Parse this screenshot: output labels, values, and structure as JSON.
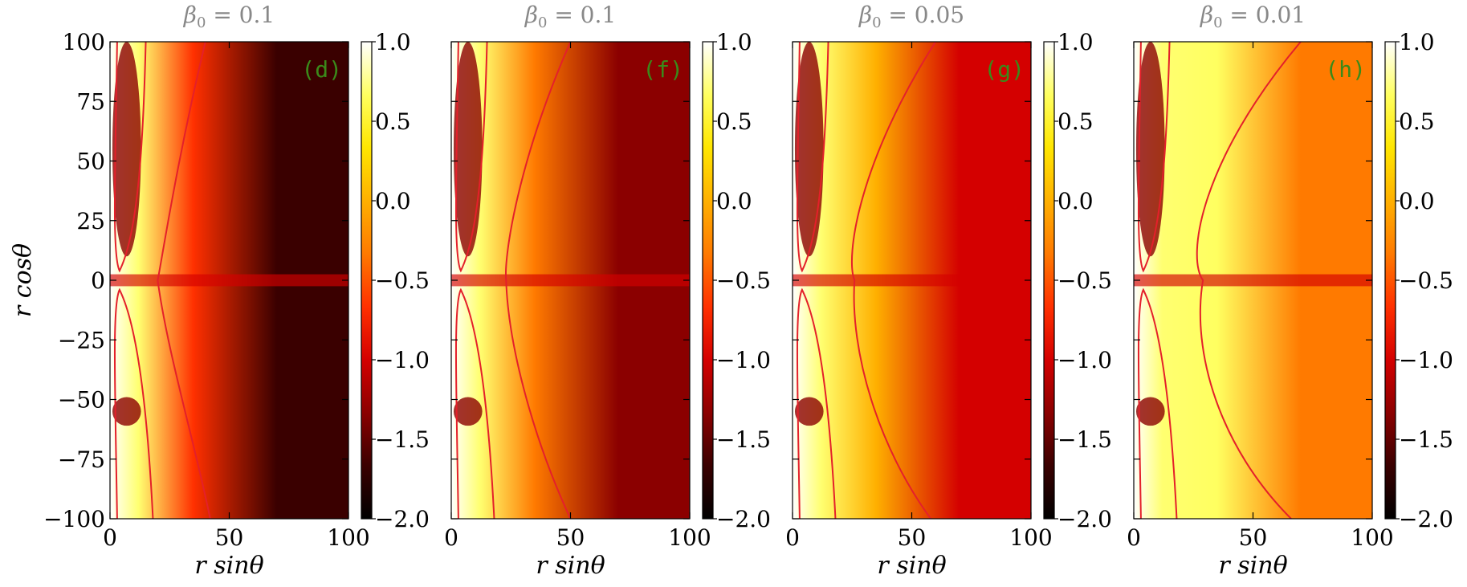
{
  "chart_data": {
    "type": "heatmap",
    "shared": {
      "xlabel": "r sinθ",
      "ylabel": "r cosθ",
      "xlim": [
        0,
        100
      ],
      "ylim": [
        -100,
        100
      ],
      "xticks": [
        0,
        50,
        100
      ],
      "yticks": [
        100,
        75,
        50,
        25,
        0,
        -25,
        -50,
        -75,
        -100
      ],
      "xtick_labels": [
        "0",
        "50",
        "100"
      ],
      "ytick_labels": [
        "100",
        "75",
        "50",
        "25",
        "0",
        "−25",
        "−50",
        "−75",
        "−100"
      ],
      "colorbar": {
        "range": [
          -2.0,
          1.0
        ],
        "ticks": [
          1.0,
          0.5,
          0.0,
          -0.5,
          -1.0,
          -1.5,
          -2.0
        ],
        "tick_labels": [
          "1.0",
          "0.5",
          "0.0",
          "−0.5",
          "−1.0",
          "−1.5",
          "−2.0"
        ],
        "colormap": [
          "#000000",
          "#3a0000",
          "#8b0000",
          "#d40000",
          "#ff3000",
          "#ff7a00",
          "#ffb000",
          "#ffe600",
          "#ffff60",
          "#ffffff"
        ]
      },
      "contour_color": "#e4202a",
      "panel_label_color": "#3a8a1a",
      "title_color": "#888888"
    },
    "panels": [
      {
        "title_symbol": "β",
        "title_sub": "0",
        "title_value": " = 0.1",
        "label": "(d)",
        "field_shade": -1.7
      },
      {
        "title_symbol": "β",
        "title_sub": "0",
        "title_value": " = 0.1",
        "label": "(f)",
        "field_shade": -1.2
      },
      {
        "title_symbol": "β",
        "title_sub": "0",
        "title_value": " = 0.05",
        "label": "(g)",
        "field_shade": -1.1
      },
      {
        "title_symbol": "β",
        "title_sub": "0",
        "title_value": " = 0.01",
        "label": "(h)",
        "field_shade": -0.2
      }
    ]
  }
}
